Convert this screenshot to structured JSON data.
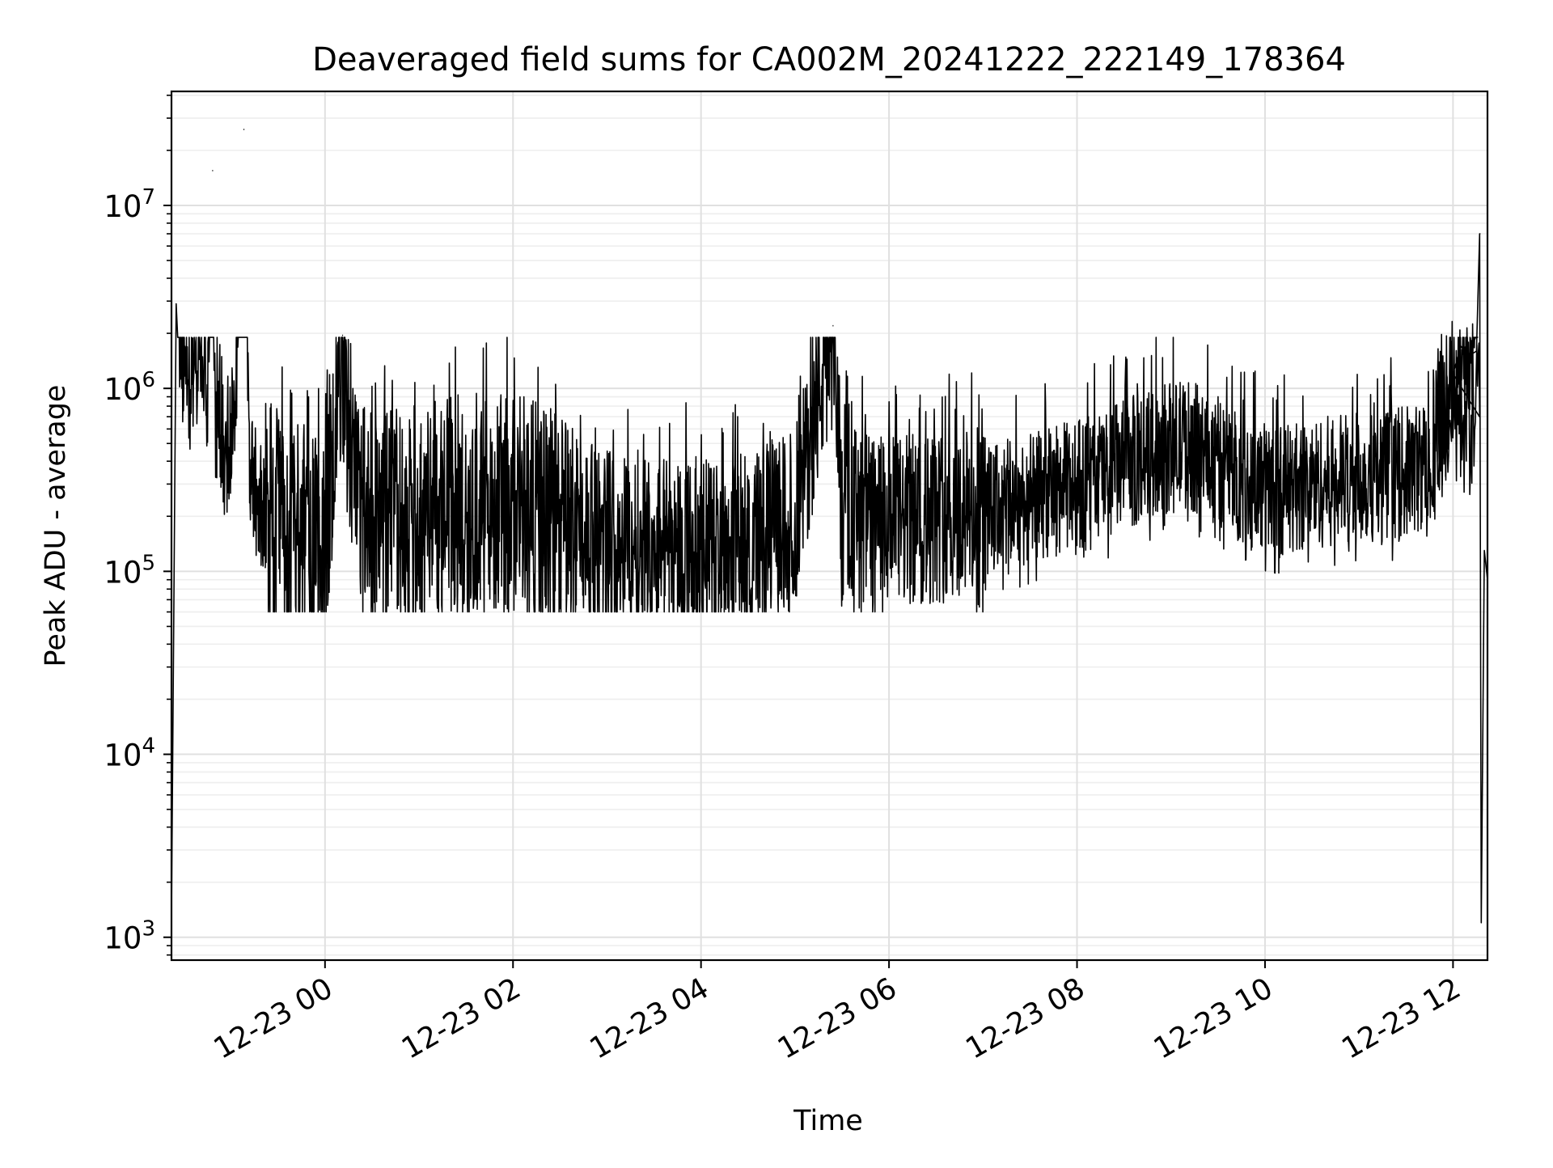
{
  "chart_data": {
    "type": "line",
    "title": "Deaveraged field sums for CA002M_20241222_222149_178364",
    "xlabel": "Time",
    "ylabel": "Peak ADU - average",
    "x_type": "datetime",
    "xlim": [
      "2024-12-22 22:22",
      "2024-12-23 12:22"
    ],
    "y_scale": "log",
    "ylim": [
      750,
      42000000
    ],
    "grid": true,
    "legend": "none",
    "line_color": "#000000",
    "x_ticks": [
      {
        "value": "2024-12-23 00:00",
        "label": "12-23 00"
      },
      {
        "value": "2024-12-23 02:00",
        "label": "12-23 02"
      },
      {
        "value": "2024-12-23 04:00",
        "label": "12-23 04"
      },
      {
        "value": "2024-12-23 06:00",
        "label": "12-23 06"
      },
      {
        "value": "2024-12-23 08:00",
        "label": "12-23 08"
      },
      {
        "value": "2024-12-23 10:00",
        "label": "12-23 10"
      },
      {
        "value": "2024-12-23 12:00",
        "label": "12-23 12"
      }
    ],
    "y_ticks": [
      {
        "value": 1000,
        "base": "10",
        "exp": "3"
      },
      {
        "value": 10000,
        "base": "10",
        "exp": "4"
      },
      {
        "value": 100000,
        "base": "10",
        "exp": "5"
      },
      {
        "value": 1000000,
        "base": "10",
        "exp": "6"
      },
      {
        "value": 10000000,
        "base": "10",
        "exp": "7"
      }
    ],
    "series": [
      {
        "x": [
          "2024-12-22 22:22",
          "2024-12-22 22:25",
          "2024-12-22 22:30",
          "2024-12-22 22:35",
          "2024-12-22 22:40",
          "2024-12-22 22:45",
          "2024-12-22 22:48",
          "2024-12-22 22:50",
          "2024-12-22 22:53",
          "2024-12-22 22:58",
          "2024-12-22 23:03",
          "2024-12-22 23:08",
          "2024-12-22 23:12",
          "2024-12-22 23:14",
          "2024-12-22 23:18",
          "2024-12-22 23:25",
          "2024-12-22 23:32",
          "2024-12-22 23:40",
          "2024-12-22 23:50",
          "2024-12-23 00:00",
          "2024-12-23 00:11",
          "2024-12-23 00:20",
          "2024-12-23 00:40",
          "2024-12-23 01:00",
          "2024-12-23 01:20",
          "2024-12-23 01:40",
          "2024-12-23 02:00",
          "2024-12-23 02:30",
          "2024-12-23 03:00",
          "2024-12-23 03:30",
          "2024-12-23 04:00",
          "2024-12-23 04:30",
          "2024-12-23 05:00",
          "2024-12-23 05:24",
          "2024-12-23 05:30",
          "2024-12-23 06:00",
          "2024-12-23 06:30",
          "2024-12-23 07:00",
          "2024-12-23 07:30",
          "2024-12-23 08:00",
          "2024-12-23 08:30",
          "2024-12-23 08:50",
          "2024-12-23 09:10",
          "2024-12-23 09:30",
          "2024-12-23 09:50",
          "2024-12-23 10:10",
          "2024-12-23 10:30",
          "2024-12-23 10:50",
          "2024-12-23 11:10",
          "2024-12-23 11:30",
          "2024-12-23 11:50",
          "2024-12-23 12:00",
          "2024-12-23 12:05",
          "2024-12-23 12:10",
          "2024-12-23 12:15",
          "2024-12-23 12:17",
          "2024-12-23 12:18",
          "2024-12-23 12:20",
          "2024-12-23 12:22"
        ],
        "y": [
          1300,
          2900000,
          1500000,
          900000,
          1700000,
          800000,
          15500000,
          700000,
          600000,
          400000,
          1000000,
          26000000,
          400000,
          300000,
          250000,
          200000,
          180000,
          160000,
          150000,
          170000,
          1950000,
          200000,
          180000,
          200000,
          220000,
          230000,
          230000,
          180000,
          160000,
          150000,
          140000,
          150000,
          200000,
          2200000,
          220000,
          180000,
          200000,
          210000,
          250000,
          300000,
          380000,
          450000,
          500000,
          400000,
          300000,
          280000,
          300000,
          320000,
          330000,
          350000,
          400000,
          1200000,
          1700000,
          1500000,
          1600000,
          7000000,
          1200,
          130000,
          90000
        ],
        "noise": "dense rapid fluctuations spanning roughly 6e4 to 1.3e6 on the log axis throughout the run"
      }
    ]
  }
}
